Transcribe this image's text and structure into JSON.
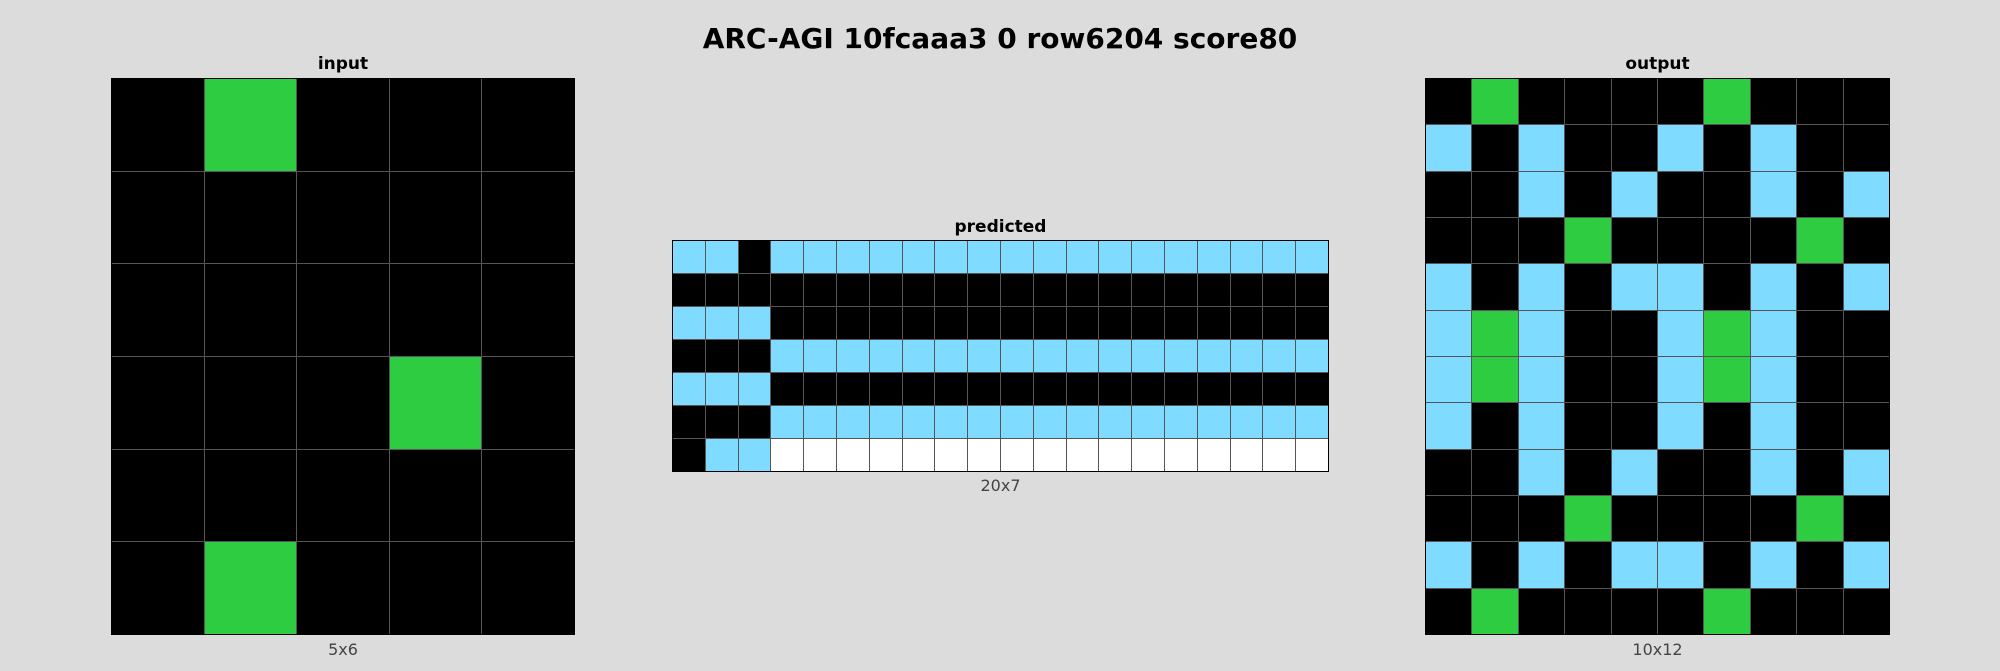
{
  "title": "ARC-AGI 10fcaaa3 0 row6204 score80",
  "colors": {
    "0": "#000000",
    "3": "#2ecc40",
    "8": "#7fdbff",
    "w": "#ffffff"
  },
  "panels": {
    "input": {
      "label": "input",
      "dims": "5x6",
      "grid": [
        [
          "0",
          "3",
          "0",
          "0",
          "0"
        ],
        [
          "0",
          "0",
          "0",
          "0",
          "0"
        ],
        [
          "0",
          "0",
          "0",
          "0",
          "0"
        ],
        [
          "0",
          "0",
          "0",
          "3",
          "0"
        ],
        [
          "0",
          "0",
          "0",
          "0",
          "0"
        ],
        [
          "0",
          "3",
          "0",
          "0",
          "0"
        ]
      ]
    },
    "predicted": {
      "label": "predicted",
      "dims": "20x7",
      "grid": [
        [
          "8",
          "8",
          "0",
          "8",
          "8",
          "8",
          "8",
          "8",
          "8",
          "8",
          "8",
          "8",
          "8",
          "8",
          "8",
          "8",
          "8",
          "8",
          "8",
          "8"
        ],
        [
          "0",
          "0",
          "0",
          "0",
          "0",
          "0",
          "0",
          "0",
          "0",
          "0",
          "0",
          "0",
          "0",
          "0",
          "0",
          "0",
          "0",
          "0",
          "0",
          "0"
        ],
        [
          "8",
          "8",
          "8",
          "0",
          "0",
          "0",
          "0",
          "0",
          "0",
          "0",
          "0",
          "0",
          "0",
          "0",
          "0",
          "0",
          "0",
          "0",
          "0",
          "0"
        ],
        [
          "0",
          "0",
          "0",
          "8",
          "8",
          "8",
          "8",
          "8",
          "8",
          "8",
          "8",
          "8",
          "8",
          "8",
          "8",
          "8",
          "8",
          "8",
          "8",
          "8"
        ],
        [
          "8",
          "8",
          "8",
          "0",
          "0",
          "0",
          "0",
          "0",
          "0",
          "0",
          "0",
          "0",
          "0",
          "0",
          "0",
          "0",
          "0",
          "0",
          "0",
          "0"
        ],
        [
          "0",
          "0",
          "0",
          "8",
          "8",
          "8",
          "8",
          "8",
          "8",
          "8",
          "8",
          "8",
          "8",
          "8",
          "8",
          "8",
          "8",
          "8",
          "8",
          "8"
        ],
        [
          "0",
          "8",
          "8",
          "w",
          "w",
          "w",
          "w",
          "w",
          "w",
          "w",
          "w",
          "w",
          "w",
          "w",
          "w",
          "w",
          "w",
          "w",
          "w",
          "w"
        ]
      ]
    },
    "output": {
      "label": "output",
      "dims": "10x12",
      "grid": [
        [
          "0",
          "3",
          "0",
          "0",
          "0",
          "0",
          "3",
          "0",
          "0",
          "0"
        ],
        [
          "8",
          "0",
          "8",
          "0",
          "0",
          "8",
          "0",
          "8",
          "0",
          "0"
        ],
        [
          "0",
          "0",
          "8",
          "0",
          "8",
          "0",
          "0",
          "8",
          "0",
          "8"
        ],
        [
          "0",
          "0",
          "0",
          "3",
          "0",
          "0",
          "0",
          "0",
          "3",
          "0"
        ],
        [
          "8",
          "0",
          "8",
          "0",
          "8",
          "8",
          "0",
          "8",
          "0",
          "8"
        ],
        [
          "8",
          "3",
          "8",
          "0",
          "0",
          "8",
          "3",
          "8",
          "0",
          "0"
        ],
        [
          "8",
          "3",
          "8",
          "0",
          "0",
          "8",
          "3",
          "8",
          "0",
          "0"
        ],
        [
          "8",
          "0",
          "8",
          "0",
          "0",
          "8",
          "0",
          "8",
          "0",
          "0"
        ],
        [
          "0",
          "0",
          "8",
          "0",
          "8",
          "0",
          "0",
          "8",
          "0",
          "8"
        ],
        [
          "0",
          "0",
          "0",
          "3",
          "0",
          "0",
          "0",
          "0",
          "3",
          "0"
        ],
        [
          "8",
          "0",
          "8",
          "0",
          "8",
          "8",
          "0",
          "8",
          "0",
          "8"
        ],
        [
          "0",
          "3",
          "0",
          "0",
          "0",
          "0",
          "3",
          "0",
          "0",
          "0"
        ]
      ]
    }
  }
}
